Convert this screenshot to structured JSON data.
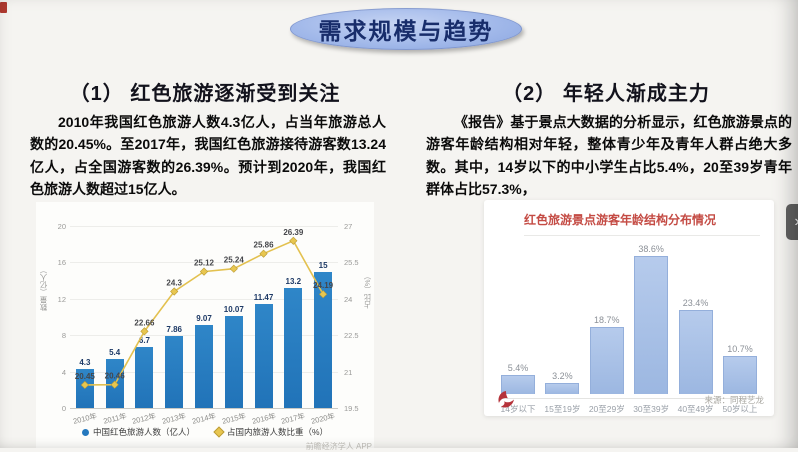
{
  "page": {
    "title": "需求规模与趋势"
  },
  "left_section": {
    "heading": "（1）  红色旅游逐渐受到关注",
    "paragraph": "2010年我国红色旅游人数4.3亿人，占当年旅游总人数的20.45%。至2017年，我国红色旅游接待游客数13.24亿人，占全国游客数的26.39%。预计到2020年，我国红色旅游人数超过15亿人。",
    "watermark": "前瞻经济学人 APP"
  },
  "right_section": {
    "heading": "（2） 年轻人渐成主力",
    "paragraph": "《报告》基于景点大数据的分析显示，红色旅游景点的游客年龄结构相对年轻，整体青少年及青年人群占绝大多数。其中，14岁以下的中小学生占比5.4%，20至39岁青年群体占比57.3%，",
    "source": "来源：同程艺龙"
  },
  "chart_data": [
    {
      "type": "bar+line",
      "title": "",
      "categories": [
        "2010年",
        "2011年",
        "2012年",
        "2013年",
        "2014年",
        "2015年",
        "2016年",
        "2017年",
        "2020年"
      ],
      "series": [
        {
          "name": "中国红色旅游人数（亿人）",
          "type": "bar",
          "color": "#2478be",
          "values": [
            4.3,
            5.4,
            6.7,
            7.86,
            9.07,
            10.07,
            11.47,
            13.2,
            15
          ]
        },
        {
          "name": "占国内旅游人数比重（%）",
          "type": "line",
          "color": "#e3c14f",
          "values": [
            20.45,
            20.46,
            22.66,
            24.3,
            25.12,
            25.24,
            25.86,
            26.39,
            24.19
          ]
        }
      ],
      "left_axis": {
        "label": "数量（亿人）",
        "ticks": [
          0,
          4,
          8,
          12,
          16,
          20
        ],
        "range": [
          0,
          20
        ]
      },
      "right_axis": {
        "label": "占比（%）",
        "ticks": [
          19.5,
          21,
          22.5,
          24,
          25.5,
          27
        ],
        "range": [
          19.5,
          27
        ]
      },
      "legend_position": "bottom",
      "grid": true
    },
    {
      "type": "bar",
      "title": "红色旅游景点游客年龄结构分布情况",
      "categories": [
        "14岁以下",
        "15至19岁",
        "20至29岁",
        "30至39岁",
        "40至49岁",
        "50岁以上"
      ],
      "values": [
        5.4,
        3.2,
        18.7,
        38.6,
        23.4,
        10.7
      ],
      "value_suffix": "%",
      "bar_color": "#a7bfe5",
      "ylim": [
        0,
        42
      ],
      "legend_position": "none"
    }
  ],
  "nav": {
    "next_arrow": "›"
  },
  "colors": {
    "title_ellipse": "#a2b9ea",
    "title_text": "#182d6b",
    "combo_bar": "#2478be",
    "combo_line": "#e3c14f",
    "age_bar": "#a7bfe5",
    "age_title_red": "#c44b44"
  }
}
